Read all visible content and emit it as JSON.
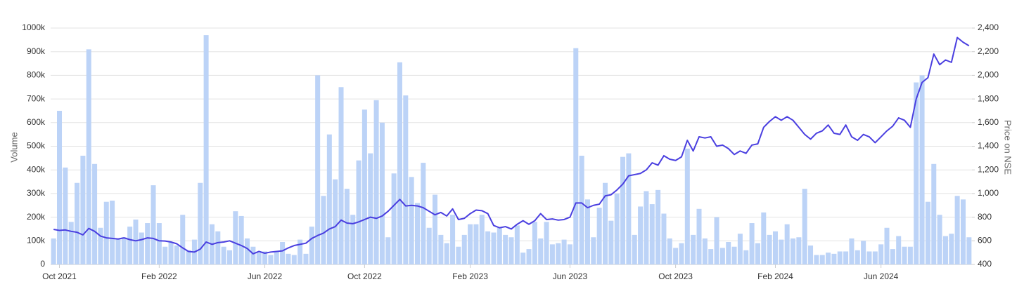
{
  "chart_data": {
    "type": "bar-line",
    "y_label": "Volume",
    "y2_label": "Price on NSE",
    "categories": [
      null,
      "Oct 2021",
      null,
      null,
      null,
      null,
      null,
      null,
      null,
      null,
      null,
      null,
      null,
      null,
      null,
      null,
      null,
      null,
      "Feb 2022",
      null,
      null,
      null,
      null,
      null,
      null,
      null,
      null,
      null,
      null,
      null,
      null,
      null,
      null,
      null,
      null,
      null,
      "Jun 2022",
      null,
      null,
      null,
      null,
      null,
      null,
      null,
      null,
      null,
      null,
      null,
      null,
      null,
      null,
      null,
      null,
      "Oct 2022",
      null,
      null,
      null,
      null,
      null,
      null,
      null,
      null,
      null,
      null,
      null,
      null,
      null,
      null,
      null,
      null,
      null,
      "Feb 2023",
      null,
      null,
      null,
      null,
      null,
      null,
      null,
      null,
      null,
      null,
      null,
      null,
      null,
      null,
      null,
      null,
      "Jun 2023",
      null,
      null,
      null,
      null,
      null,
      null,
      null,
      null,
      null,
      null,
      null,
      null,
      null,
      null,
      null,
      null,
      null,
      "Oct 2023",
      null,
      null,
      null,
      null,
      null,
      null,
      null,
      null,
      null,
      null,
      null,
      null,
      null,
      null,
      null,
      null,
      "Feb 2024",
      null,
      null,
      null,
      null,
      null,
      null,
      null,
      null,
      null,
      null,
      null,
      null,
      null,
      null,
      null,
      null,
      null,
      "Jun 2024",
      null,
      null,
      null,
      null,
      null,
      null,
      null,
      null,
      null,
      null,
      null,
      null,
      null,
      null,
      null
    ],
    "series": [
      {
        "type": "bar",
        "color": "#bcd3f7",
        "values": [
          110000,
          650000,
          410000,
          180000,
          345000,
          460000,
          910000,
          425000,
          155000,
          265000,
          270000,
          110000,
          115000,
          160000,
          190000,
          135000,
          175000,
          335000,
          175000,
          75000,
          95000,
          80000,
          210000,
          60000,
          105000,
          345000,
          970000,
          170000,
          140000,
          75000,
          60000,
          225000,
          205000,
          110000,
          75000,
          50000,
          55000,
          40000,
          55000,
          95000,
          45000,
          40000,
          105000,
          45000,
          160000,
          800000,
          290000,
          550000,
          360000,
          750000,
          320000,
          210000,
          440000,
          655000,
          470000,
          695000,
          600000,
          115000,
          385000,
          855000,
          715000,
          370000,
          260000,
          430000,
          155000,
          295000,
          125000,
          90000,
          210000,
          75000,
          125000,
          170000,
          170000,
          210000,
          140000,
          135000,
          155000,
          125000,
          115000,
          165000,
          50000,
          65000,
          180000,
          110000,
          180000,
          85000,
          90000,
          105000,
          85000,
          915000,
          460000,
          275000,
          115000,
          240000,
          345000,
          185000,
          300000,
          455000,
          470000,
          125000,
          245000,
          310000,
          255000,
          315000,
          215000,
          110000,
          70000,
          90000,
          490000,
          125000,
          235000,
          110000,
          65000,
          200000,
          70000,
          95000,
          75000,
          130000,
          60000,
          175000,
          90000,
          220000,
          125000,
          140000,
          105000,
          170000,
          110000,
          115000,
          320000,
          80000,
          40000,
          40000,
          50000,
          45000,
          55000,
          55000,
          110000,
          60000,
          100000,
          55000,
          55000,
          85000,
          155000,
          65000,
          120000,
          75000,
          75000,
          770000,
          800000,
          265000,
          425000,
          210000,
          120000,
          130000,
          290000,
          275000,
          115000
        ]
      },
      {
        "type": "line",
        "axis": "y2",
        "color": "#4a3fe0",
        "values": [
          697,
          688,
          692,
          680,
          672,
          650,
          705,
          680,
          640,
          625,
          620,
          615,
          625,
          610,
          600,
          610,
          625,
          620,
          600,
          598,
          590,
          575,
          540,
          510,
          505,
          530,
          590,
          570,
          585,
          590,
          600,
          580,
          560,
          535,
          490,
          510,
          495,
          505,
          510,
          515,
          540,
          560,
          570,
          580,
          620,
          645,
          665,
          700,
          720,
          775,
          750,
          745,
          760,
          780,
          800,
          790,
          810,
          850,
          900,
          950,
          895,
          900,
          895,
          880,
          850,
          820,
          840,
          810,
          870,
          780,
          790,
          830,
          860,
          855,
          830,
          730,
          710,
          720,
          700,
          740,
          770,
          740,
          770,
          830,
          780,
          785,
          775,
          780,
          800,
          920,
          920,
          880,
          900,
          910,
          980,
          990,
          1030,
          1080,
          1150,
          1160,
          1170,
          1200,
          1260,
          1240,
          1320,
          1290,
          1280,
          1310,
          1450,
          1360,
          1480,
          1470,
          1480,
          1400,
          1410,
          1380,
          1330,
          1360,
          1340,
          1410,
          1420,
          1560,
          1610,
          1650,
          1620,
          1650,
          1620,
          1560,
          1500,
          1460,
          1510,
          1530,
          1580,
          1510,
          1500,
          1580,
          1480,
          1450,
          1500,
          1480,
          1430,
          1480,
          1530,
          1570,
          1640,
          1620,
          1560,
          1800,
          1940,
          1980,
          2180,
          2090,
          2130,
          2110,
          2320,
          2280,
          2250
        ]
      }
    ],
    "ylim": [
      0,
      1000000
    ],
    "yticks": [
      0,
      {
        "value": 100000,
        "label": "100k"
      },
      {
        "value": 200000,
        "label": "200k"
      },
      {
        "value": 300000,
        "label": "300k"
      },
      {
        "value": 400000,
        "label": "400k"
      },
      {
        "value": 500000,
        "label": "500k"
      },
      {
        "value": 600000,
        "label": "600k"
      },
      {
        "value": 700000,
        "label": "700k"
      },
      {
        "value": 800000,
        "label": "800k"
      },
      {
        "value": 900000,
        "label": "900k"
      },
      {
        "value": 1000000,
        "label": "1000k"
      }
    ],
    "y2lim": [
      400,
      2400
    ],
    "y2ticks": [
      400,
      600,
      800,
      {
        "value": 1000,
        "label": "1,000"
      },
      {
        "value": 1200,
        "label": "1,200"
      },
      {
        "value": 1400,
        "label": "1,400"
      },
      {
        "value": 1600,
        "label": "1,600"
      },
      {
        "value": 1800,
        "label": "1,800"
      },
      {
        "value": 2000,
        "label": "2,000"
      },
      {
        "value": 2200,
        "label": "2,200"
      },
      {
        "value": 2400,
        "label": "2,400"
      }
    ],
    "grid": true
  }
}
